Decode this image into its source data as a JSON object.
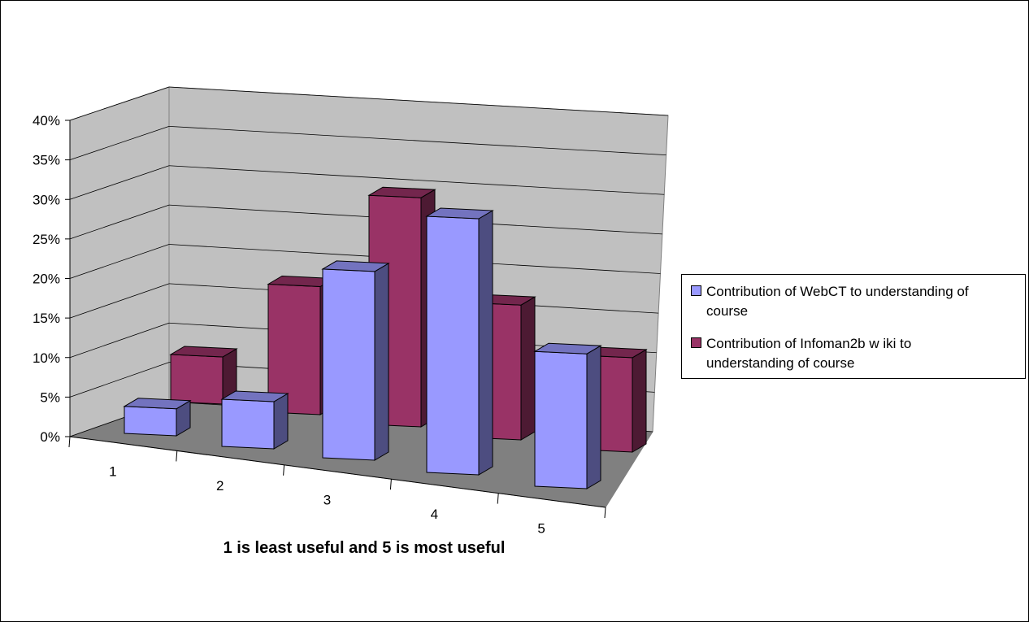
{
  "chart_data": {
    "type": "bar",
    "subtype": "3d-clustered-column",
    "title": "",
    "xlabel": "1 is least useful and 5 is most useful",
    "ylabel": "",
    "categories": [
      "1",
      "2",
      "3",
      "4",
      "5"
    ],
    "ylim": [
      0,
      0.4
    ],
    "yticks": [
      0,
      0.05,
      0.1,
      0.15,
      0.2,
      0.25,
      0.3,
      0.35,
      0.4
    ],
    "ytick_labels": [
      "0%",
      "5%",
      "10%",
      "15%",
      "20%",
      "25%",
      "30%",
      "35%",
      "40%"
    ],
    "grid": true,
    "legend_position": "right",
    "series": [
      {
        "name": "Contribution of WebCT to understanding of course",
        "values": [
          0.04,
          0.07,
          0.28,
          0.38,
          0.2
        ],
        "color": "#9999FF"
      },
      {
        "name": "Contribution of Infoman2b w iki to understanding of course",
        "values": [
          0.07,
          0.19,
          0.34,
          0.2,
          0.14
        ],
        "color": "#993366"
      }
    ],
    "colors": {
      "wall": "#C0C0C0",
      "floor": "#808080"
    }
  },
  "legend": {
    "items": [
      {
        "line1": "Contribution of WebCT to understanding of",
        "line2": "course",
        "color": "#9999FF"
      },
      {
        "line1": "Contribution of Infoman2b w iki to",
        "line2": "understanding of course",
        "color": "#993366"
      }
    ]
  }
}
